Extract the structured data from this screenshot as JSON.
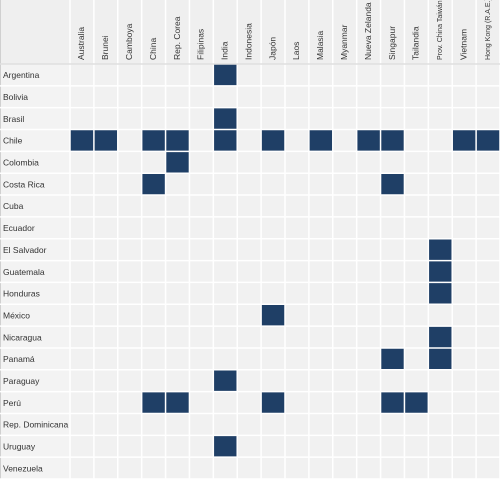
{
  "table": {
    "columns": [
      "Australia",
      "Brunei",
      "Camboya",
      "China",
      "Rep. Corea",
      "Filipinas",
      "India",
      "Indonesia",
      "Japón",
      "Laos",
      "Malasia",
      "Myanmar",
      "Nueva Zelanda",
      "Singapur",
      "Tailandia",
      "Prov. China Taiwán",
      "Vietnam",
      "Hong Kong (R.A.E.)"
    ],
    "fill_color": "#1f3f66",
    "rows": [
      {
        "label": "Argentina",
        "filled": [
          6
        ]
      },
      {
        "label": "Bolivia",
        "filled": []
      },
      {
        "label": "Brasil",
        "filled": [
          6
        ]
      },
      {
        "label": "Chile",
        "filled": [
          0,
          1,
          3,
          4,
          6,
          8,
          10,
          12,
          13,
          16,
          17
        ]
      },
      {
        "label": "Colombia",
        "filled": [
          4
        ]
      },
      {
        "label": "Costa Rica",
        "filled": [
          3,
          13
        ]
      },
      {
        "label": "Cuba",
        "filled": []
      },
      {
        "label": "Ecuador",
        "filled": []
      },
      {
        "label": "El Salvador",
        "filled": [
          15
        ]
      },
      {
        "label": "Guatemala",
        "filled": [
          15
        ]
      },
      {
        "label": "Honduras",
        "filled": [
          15
        ]
      },
      {
        "label": "México",
        "filled": [
          8
        ]
      },
      {
        "label": "Nicaragua",
        "filled": [
          15
        ]
      },
      {
        "label": "Panamá",
        "filled": [
          13,
          15
        ]
      },
      {
        "label": "Paraguay",
        "filled": [
          6
        ]
      },
      {
        "label": "Perú",
        "filled": [
          3,
          4,
          8,
          13,
          14
        ]
      },
      {
        "label": "Rep. Dominicana",
        "filled": []
      },
      {
        "label": "Uruguay",
        "filled": [
          6
        ]
      },
      {
        "label": "Venezuela",
        "filled": []
      }
    ]
  }
}
